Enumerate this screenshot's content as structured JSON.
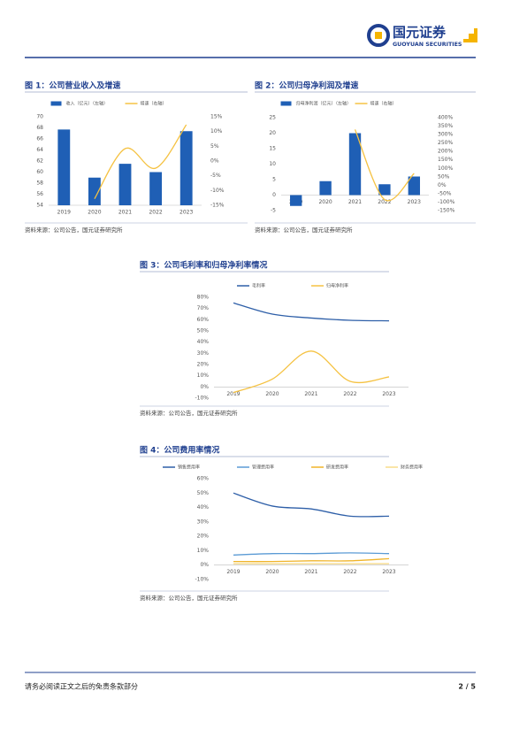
{
  "header": {
    "logo_cn": "国元证券",
    "logo_en": "GUOYUAN SECURITIES"
  },
  "chart_data": [
    {
      "type": "bar",
      "title": "图 1：公司营业收入及增速",
      "source": "资料来源：公司公告，国元证券研究所",
      "categories": [
        "2019",
        "2020",
        "2021",
        "2022",
        "2023"
      ],
      "series": [
        {
          "name": "收入（亿元）（左轴）",
          "type": "bar",
          "color": "#1f5fb5",
          "values": [
            67.7,
            59.0,
            61.5,
            60.0,
            67.4
          ]
        },
        {
          "name": "增速（右轴）",
          "type": "line",
          "axis": "y2",
          "color": "#f5c242",
          "values": [
            null,
            -12.8,
            4.2,
            -2.4,
            12.3
          ]
        }
      ],
      "ylim": [
        54,
        70
      ],
      "yticks": [
        54,
        56,
        58,
        60,
        62,
        64,
        66,
        68,
        70
      ],
      "y2lim": [
        -15,
        15
      ],
      "y2ticks": [
        {
          "value": -15,
          "label": "-15%"
        },
        {
          "value": -10,
          "label": "-10%"
        },
        {
          "value": -5,
          "label": "-5%"
        },
        {
          "value": 0,
          "label": "0%"
        },
        {
          "value": 5,
          "label": "5%"
        },
        {
          "value": 10,
          "label": "10%"
        },
        {
          "value": 15,
          "label": "15%"
        }
      ]
    },
    {
      "type": "bar",
      "title": "图 2：公司归母净利润及增速",
      "source": "资料来源：公司公告，国元证券研究所",
      "categories": [
        "2019",
        "2020",
        "2021",
        "2022",
        "2023"
      ],
      "series": [
        {
          "name": "归母净利润（亿元）（左轴）",
          "type": "bar",
          "color": "#1f5fb5",
          "values": [
            -3.5,
            4.5,
            20.0,
            3.5,
            6.0
          ]
        },
        {
          "name": "增速（右轴）",
          "type": "line",
          "axis": "y2",
          "color": "#f5c242",
          "values": [
            null,
            null,
            330,
            -85,
            70
          ]
        }
      ],
      "ylim": [
        -5,
        25
      ],
      "yticks": [
        -5,
        0,
        5,
        10,
        15,
        20,
        25
      ],
      "y2lim": [
        -150,
        400
      ],
      "y2ticks": [
        {
          "value": -150,
          "label": "-150%"
        },
        {
          "value": -100,
          "label": "-100%"
        },
        {
          "value": -50,
          "label": "-50%"
        },
        {
          "value": 0,
          "label": "0%"
        },
        {
          "value": 50,
          "label": "50%"
        },
        {
          "value": 100,
          "label": "100%"
        },
        {
          "value": 150,
          "label": "150%"
        },
        {
          "value": 200,
          "label": "200%"
        },
        {
          "value": 250,
          "label": "250%"
        },
        {
          "value": 300,
          "label": "300%"
        },
        {
          "value": 350,
          "label": "350%"
        },
        {
          "value": 400,
          "label": "400%"
        }
      ]
    },
    {
      "type": "line",
      "title": "图 3：公司毛利率和归母净利率情况",
      "source": "资料来源：公司公告，国元证券研究所",
      "categories": [
        "2019",
        "2020",
        "2021",
        "2022",
        "2023"
      ],
      "series": [
        {
          "name": "毛利率",
          "color": "#2e5fa8",
          "values": [
            75,
            65,
            61.5,
            59.5,
            59
          ]
        },
        {
          "name": "归母净利率",
          "color": "#f5c242",
          "values": [
            -5,
            7,
            32,
            5,
            9
          ]
        }
      ],
      "ylim": [
        -10,
        80
      ],
      "yticks": [
        {
          "value": -10,
          "label": "-10%"
        },
        {
          "value": 0,
          "label": "0%"
        },
        {
          "value": 10,
          "label": "10%"
        },
        {
          "value": 20,
          "label": "20%"
        },
        {
          "value": 30,
          "label": "30%"
        },
        {
          "value": 40,
          "label": "40%"
        },
        {
          "value": 50,
          "label": "50%"
        },
        {
          "value": 60,
          "label": "60%"
        },
        {
          "value": 70,
          "label": "70%"
        },
        {
          "value": 80,
          "label": "80%"
        }
      ]
    },
    {
      "type": "line",
      "title": "图 4：公司费用率情况",
      "source": "资料来源：公司公告，国元证券研究所",
      "categories": [
        "2019",
        "2020",
        "2021",
        "2022",
        "2023"
      ],
      "series": [
        {
          "name": "销售费用率",
          "color": "#2e5fa8",
          "values": [
            50,
            41,
            39,
            34,
            34
          ]
        },
        {
          "name": "管理费用率",
          "color": "#5b9bd5",
          "values": [
            7,
            8,
            8,
            8.5,
            8
          ]
        },
        {
          "name": "研发费用率",
          "color": "#f0b429",
          "values": [
            2.5,
            2.5,
            3,
            3,
            4.5
          ]
        },
        {
          "name": "财务费用率",
          "color": "#f8dc8a",
          "values": [
            1,
            1,
            1,
            1,
            1
          ]
        }
      ],
      "ylim": [
        -10,
        60
      ],
      "yticks": [
        {
          "value": -10,
          "label": "-10%"
        },
        {
          "value": 0,
          "label": "0%"
        },
        {
          "value": 10,
          "label": "10%"
        },
        {
          "value": 20,
          "label": "20%"
        },
        {
          "value": 30,
          "label": "30%"
        },
        {
          "value": 40,
          "label": "40%"
        },
        {
          "value": 50,
          "label": "50%"
        },
        {
          "value": 60,
          "label": "60%"
        }
      ]
    }
  ],
  "footer": {
    "disclaimer": "请务必阅读正文之后的免责条款部分",
    "page": "2 / 5"
  }
}
